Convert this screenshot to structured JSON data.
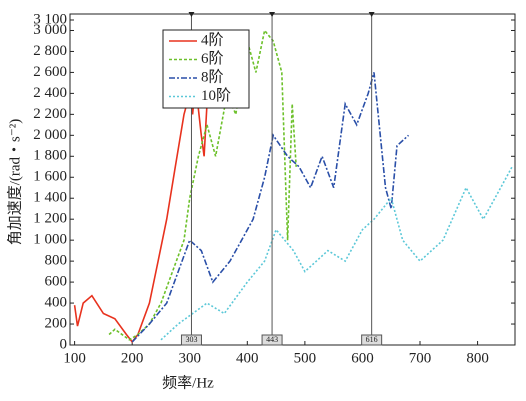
{
  "chart_data": {
    "type": "line",
    "x_label": "频率/Hz",
    "y_label": "角加速度/(rad・s⁻²)",
    "xlim": [
      92,
      865
    ],
    "ylim": [
      0,
      3100
    ],
    "xticks": [
      100,
      200,
      300,
      400,
      500,
      600,
      700,
      800
    ],
    "yticks": [
      0,
      200,
      400,
      600,
      800,
      {
        "value": 1000,
        "label": "1 000"
      },
      {
        "value": 1200,
        "label": "1 200"
      },
      {
        "value": 1400,
        "label": "1 400"
      },
      {
        "value": 1600,
        "label": "1 600"
      },
      {
        "value": 1800,
        "label": "1 800"
      },
      {
        "value": 2000,
        "label": "2 000"
      },
      {
        "value": 2200,
        "label": "2 200"
      },
      {
        "value": 2400,
        "label": "2 400"
      },
      {
        "value": 2600,
        "label": "2 600"
      },
      {
        "value": 2800,
        "label": "2 800"
      },
      {
        "value": 3000,
        "label": "3 000"
      },
      {
        "value": 3100,
        "label": "3 100"
      }
    ],
    "markers": [
      303,
      443,
      616
    ],
    "legend": "upper-left",
    "series": [
      {
        "name": "4阶",
        "color": "#e8321e",
        "dash": "",
        "x": [
          100,
          105,
          115,
          130,
          150,
          170,
          190,
          200,
          210,
          230,
          245,
          260,
          275,
          290,
          300,
          305,
          310,
          320,
          325,
          330
        ],
        "values": [
          380,
          180,
          400,
          470,
          300,
          250,
          100,
          30,
          100,
          400,
          800,
          1200,
          1700,
          2200,
          2400,
          2200,
          2500,
          2000,
          1800,
          2300
        ]
      },
      {
        "name": "6阶",
        "color": "#6cc02a",
        "dash": "3 2",
        "x": [
          160,
          170,
          195,
          210,
          230,
          250,
          270,
          290,
          300,
          315,
          330,
          345,
          365,
          380,
          400,
          415,
          430,
          445,
          460,
          470,
          478,
          485
        ],
        "values": [
          100,
          150,
          50,
          100,
          200,
          400,
          700,
          1000,
          1400,
          1800,
          2100,
          1800,
          2400,
          2200,
          2900,
          2600,
          3000,
          2900,
          2600,
          1000,
          2300,
          1700
        ]
      },
      {
        "name": "8阶",
        "color": "#2a4fa8",
        "dash": "6 2 2 2",
        "x": [
          200,
          230,
          260,
          280,
          300,
          320,
          340,
          370,
          390,
          410,
          430,
          445,
          470,
          490,
          510,
          530,
          550,
          570,
          590,
          610,
          620,
          640,
          650,
          660,
          680
        ],
        "values": [
          30,
          200,
          400,
          700,
          1000,
          900,
          600,
          800,
          1000,
          1200,
          1600,
          2000,
          1800,
          1700,
          1500,
          1800,
          1500,
          2300,
          2100,
          2400,
          2600,
          1500,
          1300,
          1900,
          2000
        ]
      },
      {
        "name": "10阶",
        "color": "#5cc8d8",
        "dash": "2 2",
        "x": [
          250,
          280,
          330,
          360,
          400,
          430,
          450,
          480,
          500,
          540,
          570,
          600,
          620,
          650,
          670,
          700,
          740,
          780,
          810,
          850,
          860
        ],
        "values": [
          50,
          200,
          400,
          300,
          600,
          800,
          1100,
          900,
          700,
          900,
          800,
          1100,
          1200,
          1400,
          1000,
          800,
          1000,
          1500,
          1200,
          1600,
          1700
        ]
      }
    ]
  }
}
